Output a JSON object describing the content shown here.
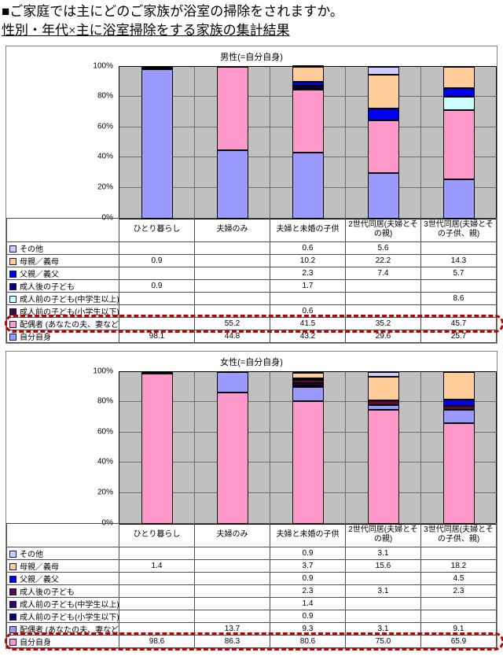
{
  "page": {
    "title_line1": "■ご家庭では主にどのご家族が浴室の掃除をされますか。",
    "title_line2": "性別・年代×主に浴室掃除をする家族の集計結果"
  },
  "axis": {
    "ticks": [
      "100%",
      "80%",
      "60%",
      "40%",
      "20%",
      "0%"
    ],
    "ylim": [
      0,
      100
    ]
  },
  "chart_data": [
    {
      "type": "bar",
      "stacked": true,
      "title": "男性(=自分自身)",
      "categories": [
        "ひとり暮らし",
        "夫婦のみ",
        "夫婦と未婚の子供",
        "2世代同居(夫婦とその親)",
        "3世代同居(夫婦とその子供、親)"
      ],
      "ylabel": "",
      "ylim": [
        0,
        100
      ],
      "grid": true,
      "plot_bg": "#C0C0C0",
      "series": [
        {
          "name": "その他",
          "color": "#CCCCFF",
          "values": [
            null,
            null,
            0.6,
            5.6,
            null
          ]
        },
        {
          "name": "母親／義母",
          "color": "#FFCC99",
          "values": [
            0.9,
            null,
            10.2,
            22.2,
            14.3
          ]
        },
        {
          "name": "父親／義父",
          "color": "#0000EE",
          "values": [
            null,
            null,
            2.3,
            7.4,
            5.7
          ]
        },
        {
          "name": "成人後の子ども",
          "color": "#000080",
          "values": [
            0.9,
            null,
            1.7,
            null,
            null
          ]
        },
        {
          "name": "成人前の子ども(中学生以上)",
          "color": "#CCFFFF",
          "values": [
            null,
            null,
            null,
            null,
            8.6
          ]
        },
        {
          "name": "成人前の子ども(小学生以下)",
          "color": "#3D0F3D",
          "values": [
            null,
            null,
            0.6,
            null,
            null
          ]
        },
        {
          "name": "配偶者 (あなたの夫、妻など)",
          "color": "#FF99CC",
          "values": [
            null,
            55.2,
            41.5,
            35.2,
            45.7
          ]
        },
        {
          "name": "自分自身",
          "color": "#9999FF",
          "values": [
            98.1,
            44.8,
            43.2,
            29.6,
            25.7
          ]
        }
      ],
      "highlight_row": 6,
      "highlight_color": "#C00000"
    },
    {
      "type": "bar",
      "stacked": true,
      "title": "女性(=自分自身)",
      "categories": [
        "ひとり暮らし",
        "夫婦のみ",
        "夫婦と未婚の子供",
        "2世代同居(夫婦とその親)",
        "3世代同居(夫婦とその子供、親)"
      ],
      "ylabel": "",
      "ylim": [
        0,
        100
      ],
      "grid": true,
      "plot_bg": "#C0C0C0",
      "series": [
        {
          "name": "その他",
          "color": "#CCCCFF",
          "values": [
            null,
            null,
            0.9,
            3.1,
            null
          ]
        },
        {
          "name": "母親／義母",
          "color": "#FFCC99",
          "values": [
            1.4,
            null,
            3.7,
            15.6,
            18.2
          ]
        },
        {
          "name": "父親／義父",
          "color": "#0000EE",
          "values": [
            null,
            null,
            0.9,
            null,
            4.5
          ]
        },
        {
          "name": "成人後の子ども",
          "color": "#5C0A33",
          "values": [
            null,
            null,
            2.3,
            3.1,
            2.3
          ]
        },
        {
          "name": "成人前の子ども(中学生以上)",
          "color": "#330066",
          "values": [
            null,
            null,
            1.4,
            null,
            null
          ]
        },
        {
          "name": "成人前の子ども(小学生以下)",
          "color": "#000060",
          "values": [
            null,
            null,
            0.9,
            null,
            null
          ]
        },
        {
          "name": "配偶者 (あなたの夫、妻など)",
          "color": "#9999FF",
          "values": [
            null,
            13.7,
            9.3,
            3.1,
            9.1
          ]
        },
        {
          "name": "自分自身",
          "color": "#FF99CC",
          "values": [
            98.6,
            86.3,
            80.6,
            75.0,
            65.9
          ]
        }
      ],
      "highlight_row": 7,
      "highlight_color": "#C00000"
    }
  ]
}
